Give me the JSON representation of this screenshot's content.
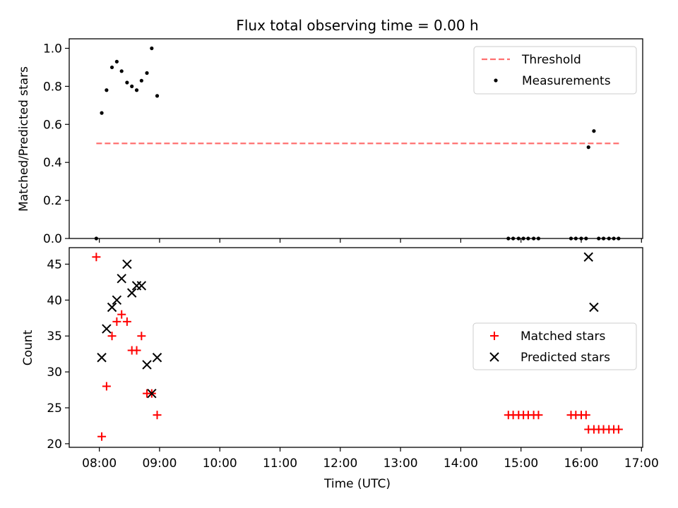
{
  "figure": {
    "title": "Flux total observing time = 0.00 h"
  },
  "chart_data": [
    {
      "type": "scatter",
      "panel": "top",
      "ylabel": "Matched/Predicted stars",
      "xlabel": "",
      "ylim": [
        0,
        1.05
      ],
      "yticks": [
        0.0,
        0.2,
        0.4,
        0.6,
        0.8,
        1.0
      ],
      "ytick_labels": [
        "0.0",
        "0.2",
        "0.4",
        "0.6",
        "0.8",
        "1.0"
      ],
      "xlim_hours": [
        7.5,
        17.02
      ],
      "legend": {
        "position": "top-right",
        "entries": [
          {
            "label": "Threshold",
            "style": "dashed-line",
            "color": "#ff7070"
          },
          {
            "label": "Measurements",
            "style": "dot",
            "color": "#000000"
          }
        ]
      },
      "threshold": {
        "name": "Threshold",
        "y": 0.5,
        "x_start": 7.95,
        "x_end": 16.63,
        "color": "#ff7070"
      },
      "series": [
        {
          "name": "Measurements",
          "marker": "dot",
          "color": "#000000",
          "x": [
            7.95,
            8.04,
            8.12,
            8.21,
            8.29,
            8.37,
            8.46,
            8.54,
            8.62,
            8.7,
            8.79,
            8.87,
            8.96,
            14.79,
            14.87,
            14.96,
            15.04,
            15.12,
            15.21,
            15.29,
            15.83,
            15.91,
            16.0,
            16.08,
            16.12,
            16.21,
            16.29,
            16.37,
            16.46,
            16.54,
            16.62
          ],
          "y": [
            0.0,
            0.66,
            0.78,
            0.9,
            0.93,
            0.88,
            0.82,
            0.8,
            0.78,
            0.83,
            0.87,
            1.0,
            0.75,
            0,
            0,
            0,
            0,
            0,
            0,
            0,
            0,
            0,
            0,
            0,
            0.48,
            0.565,
            0,
            0,
            0,
            0,
            0
          ]
        }
      ]
    },
    {
      "type": "scatter",
      "panel": "bottom",
      "ylabel": "Count",
      "xlabel": "Time (UTC)",
      "ylim": [
        19.5,
        47.3
      ],
      "yticks": [
        20,
        25,
        30,
        35,
        40,
        45
      ],
      "ytick_labels": [
        "20",
        "25",
        "30",
        "35",
        "40",
        "45"
      ],
      "xlim_hours": [
        7.5,
        17.02
      ],
      "xticks_hours": [
        8,
        9,
        10,
        11,
        12,
        13,
        14,
        15,
        16,
        17
      ],
      "xtick_labels": [
        "08:00",
        "09:00",
        "10:00",
        "11:00",
        "12:00",
        "13:00",
        "14:00",
        "15:00",
        "16:00",
        "17:00"
      ],
      "legend": {
        "position": "center-right",
        "entries": [
          {
            "label": "Matched stars",
            "style": "plus",
            "color": "#ff0000"
          },
          {
            "label": "Predicted stars",
            "style": "x",
            "color": "#000000"
          }
        ]
      },
      "series": [
        {
          "name": "Matched stars",
          "marker": "plus",
          "color": "#ff0000",
          "x": [
            7.95,
            8.04,
            8.12,
            8.21,
            8.29,
            8.37,
            8.46,
            8.54,
            8.62,
            8.7,
            8.79,
            8.87,
            8.96,
            14.79,
            14.87,
            14.96,
            15.04,
            15.12,
            15.21,
            15.29,
            15.83,
            15.91,
            16.0,
            16.08,
            16.12,
            16.21,
            16.29,
            16.37,
            16.46,
            16.54,
            16.62
          ],
          "y": [
            46,
            21,
            28,
            35,
            37,
            38,
            37,
            33,
            33,
            35,
            27,
            27,
            24,
            24,
            24,
            24,
            24,
            24,
            24,
            24,
            24,
            24,
            24,
            24,
            22,
            22,
            22,
            22,
            22,
            22,
            22
          ]
        },
        {
          "name": "Predicted stars",
          "marker": "x",
          "color": "#000000",
          "x": [
            8.04,
            8.12,
            8.21,
            8.29,
            8.37,
            8.46,
            8.54,
            8.62,
            8.7,
            8.79,
            8.87,
            8.96,
            16.12,
            16.21
          ],
          "y": [
            32,
            36,
            39,
            40,
            43,
            45,
            41,
            42,
            42,
            31,
            27,
            32,
            46,
            39
          ]
        }
      ]
    }
  ]
}
